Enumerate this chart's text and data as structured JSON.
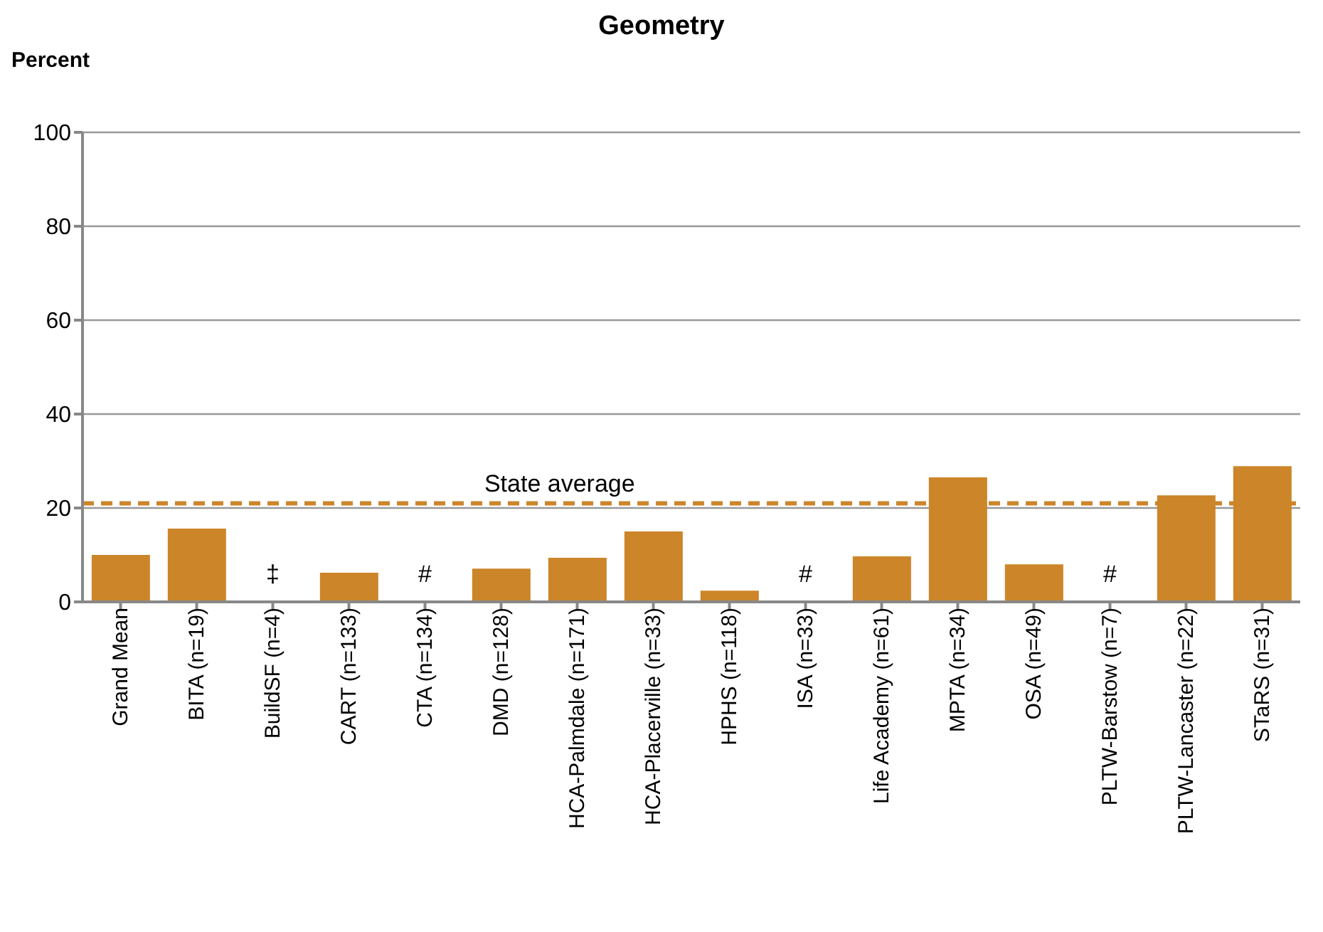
{
  "chart_data": {
    "type": "bar",
    "title": "Geometry",
    "ylabel": "Percent",
    "categories": [
      "Grand Mean",
      "BITA (n=19)",
      "BuildSF (n=4)",
      "CART (n=133)",
      "CTA (n=134)",
      "DMD (n=128)",
      "HCA-Palmdale (n=171)",
      "HCA-Placerville (n=33)",
      "HPHS (n=118)",
      "ISA (n=33)",
      "Life Academy (n=61)",
      "MPTA (n=34)",
      "OSA (n=49)",
      "PLTW-Barstow (n=7)",
      "PLTW-Lancaster (n=22)",
      "STaRS (n=31)"
    ],
    "values": [
      10.0,
      15.6,
      null,
      6.2,
      null,
      7.1,
      9.4,
      15.0,
      2.4,
      null,
      9.7,
      26.5,
      8.0,
      null,
      22.7,
      28.9
    ],
    "color": "#cc8529",
    "ylim": [
      0,
      100
    ],
    "yticks": [
      0,
      20,
      40,
      60,
      80,
      100
    ],
    "grid": "y",
    "ref_lines": [
      {
        "axis": "y",
        "value": 21,
        "label": "State average",
        "color": "#cc8529",
        "line_style": "dashed"
      }
    ],
    "annotations": [
      "‡",
      "#",
      "#",
      "#"
    ]
  }
}
